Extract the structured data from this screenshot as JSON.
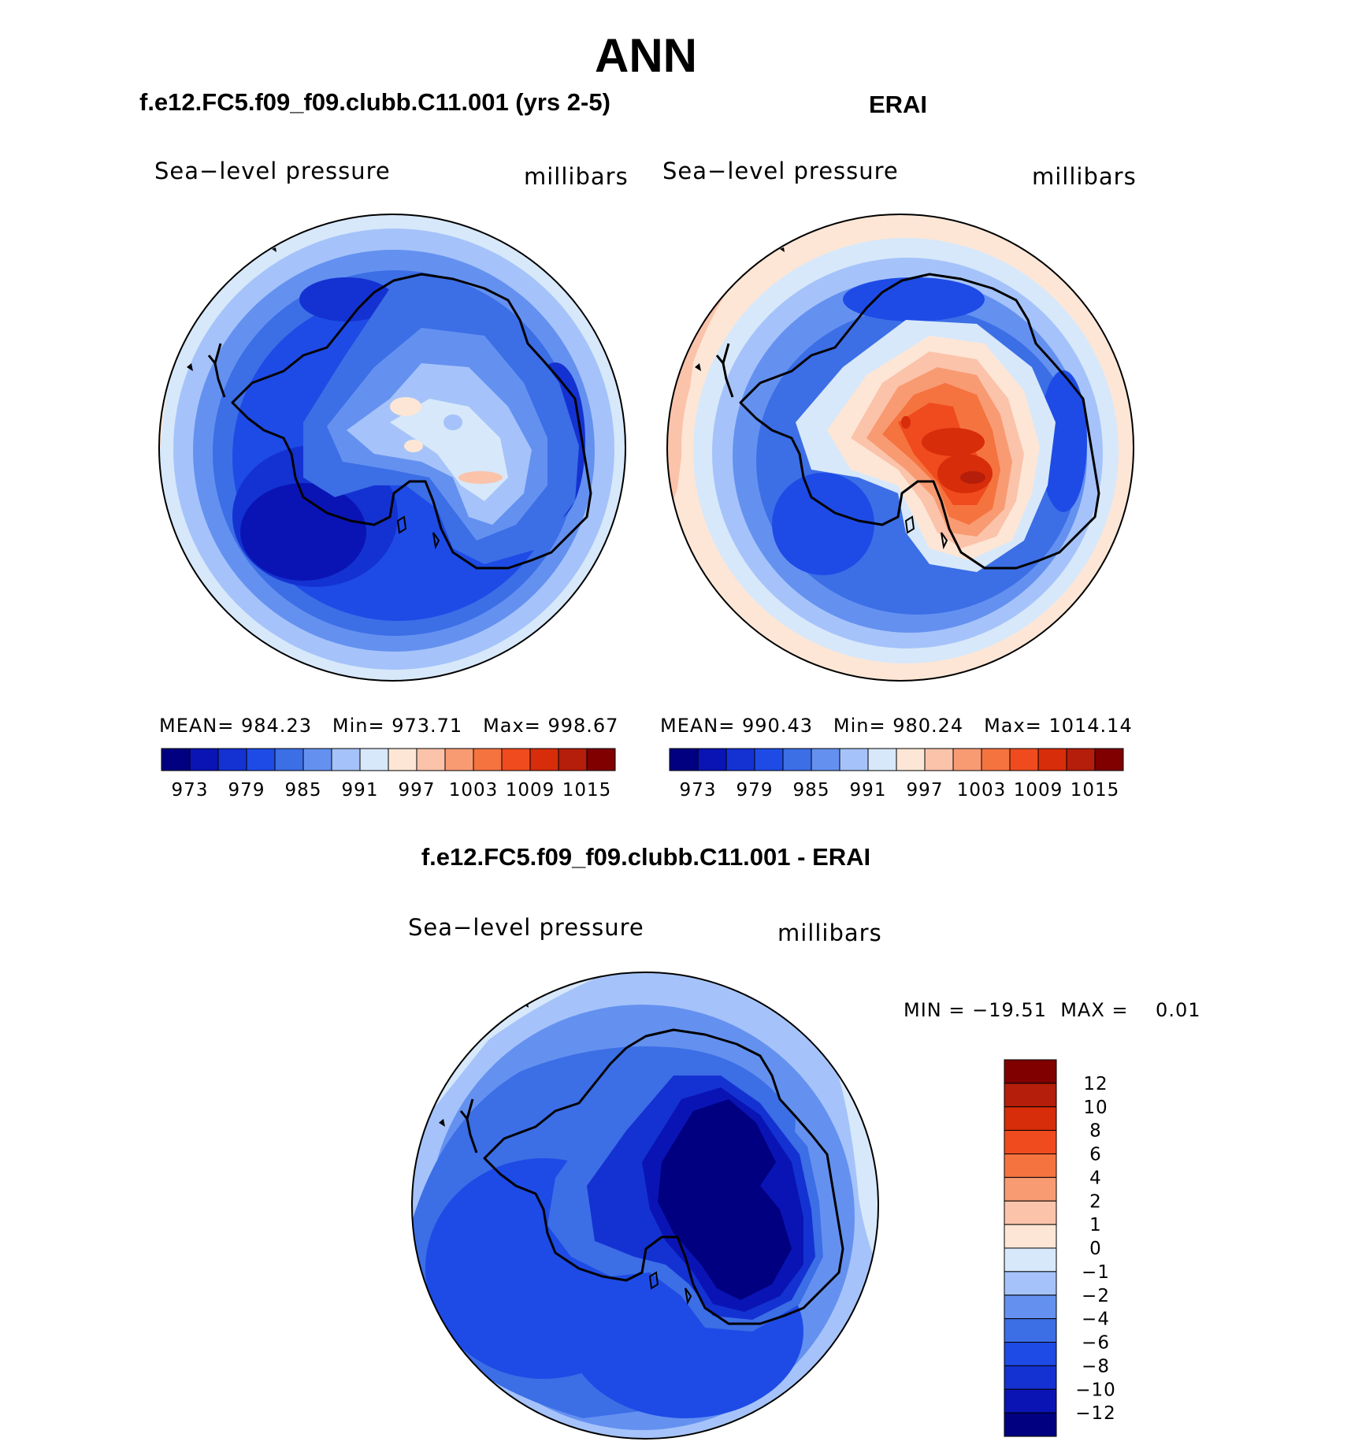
{
  "season": "ANN",
  "colors": {
    "palette": [
      "#000080",
      "#0a14b4",
      "#1432d2",
      "#1e4be6",
      "#3c6ee6",
      "#6491f0",
      "#a5c3fa",
      "#d7e8fa",
      "#fde6d6",
      "#fbc3aa",
      "#f89b73",
      "#f5733f",
      "#f04b1e",
      "#d72d0a",
      "#b41e0a",
      "#800000"
    ],
    "coast": "#000000"
  },
  "panels": {
    "model": {
      "title": "f.e12.FC5.f09_f09.clubb.C11.001 (yrs 2-5)",
      "variable": "Sea−level pressure",
      "units": "millibars",
      "stats": {
        "mean_label": "MEAN=",
        "mean": "984.23",
        "min_label": "Min=",
        "min": "973.71",
        "max_label": "Max=",
        "max": "998.67"
      }
    },
    "obs": {
      "title": "ERAI",
      "variable": "Sea−level pressure",
      "units": "millibars",
      "stats": {
        "mean_label": "MEAN=",
        "mean": "990.43",
        "min_label": "Min=",
        "min": "980.24",
        "max_label": "Max=",
        "max": "1014.14"
      }
    },
    "diff": {
      "title": "f.e12.FC5.f09_f09.clubb.C11.001 - ERAI",
      "variable": "Sea−level pressure",
      "units": "millibars",
      "stats": {
        "min_label": "MIN =",
        "min": "−19.51",
        "max_label": "MAX =",
        "max": "0.01"
      }
    }
  },
  "colorbar_abs": {
    "ticks": [
      "973",
      "979",
      "985",
      "991",
      "997",
      "1003",
      "1009",
      "1015"
    ]
  },
  "colorbar_diff": {
    "ticks": [
      "12",
      "10",
      "8",
      "6",
      "4",
      "2",
      "1",
      "0",
      "−1",
      "−2",
      "−4",
      "−6",
      "−8",
      "−10",
      "−12"
    ]
  }
}
